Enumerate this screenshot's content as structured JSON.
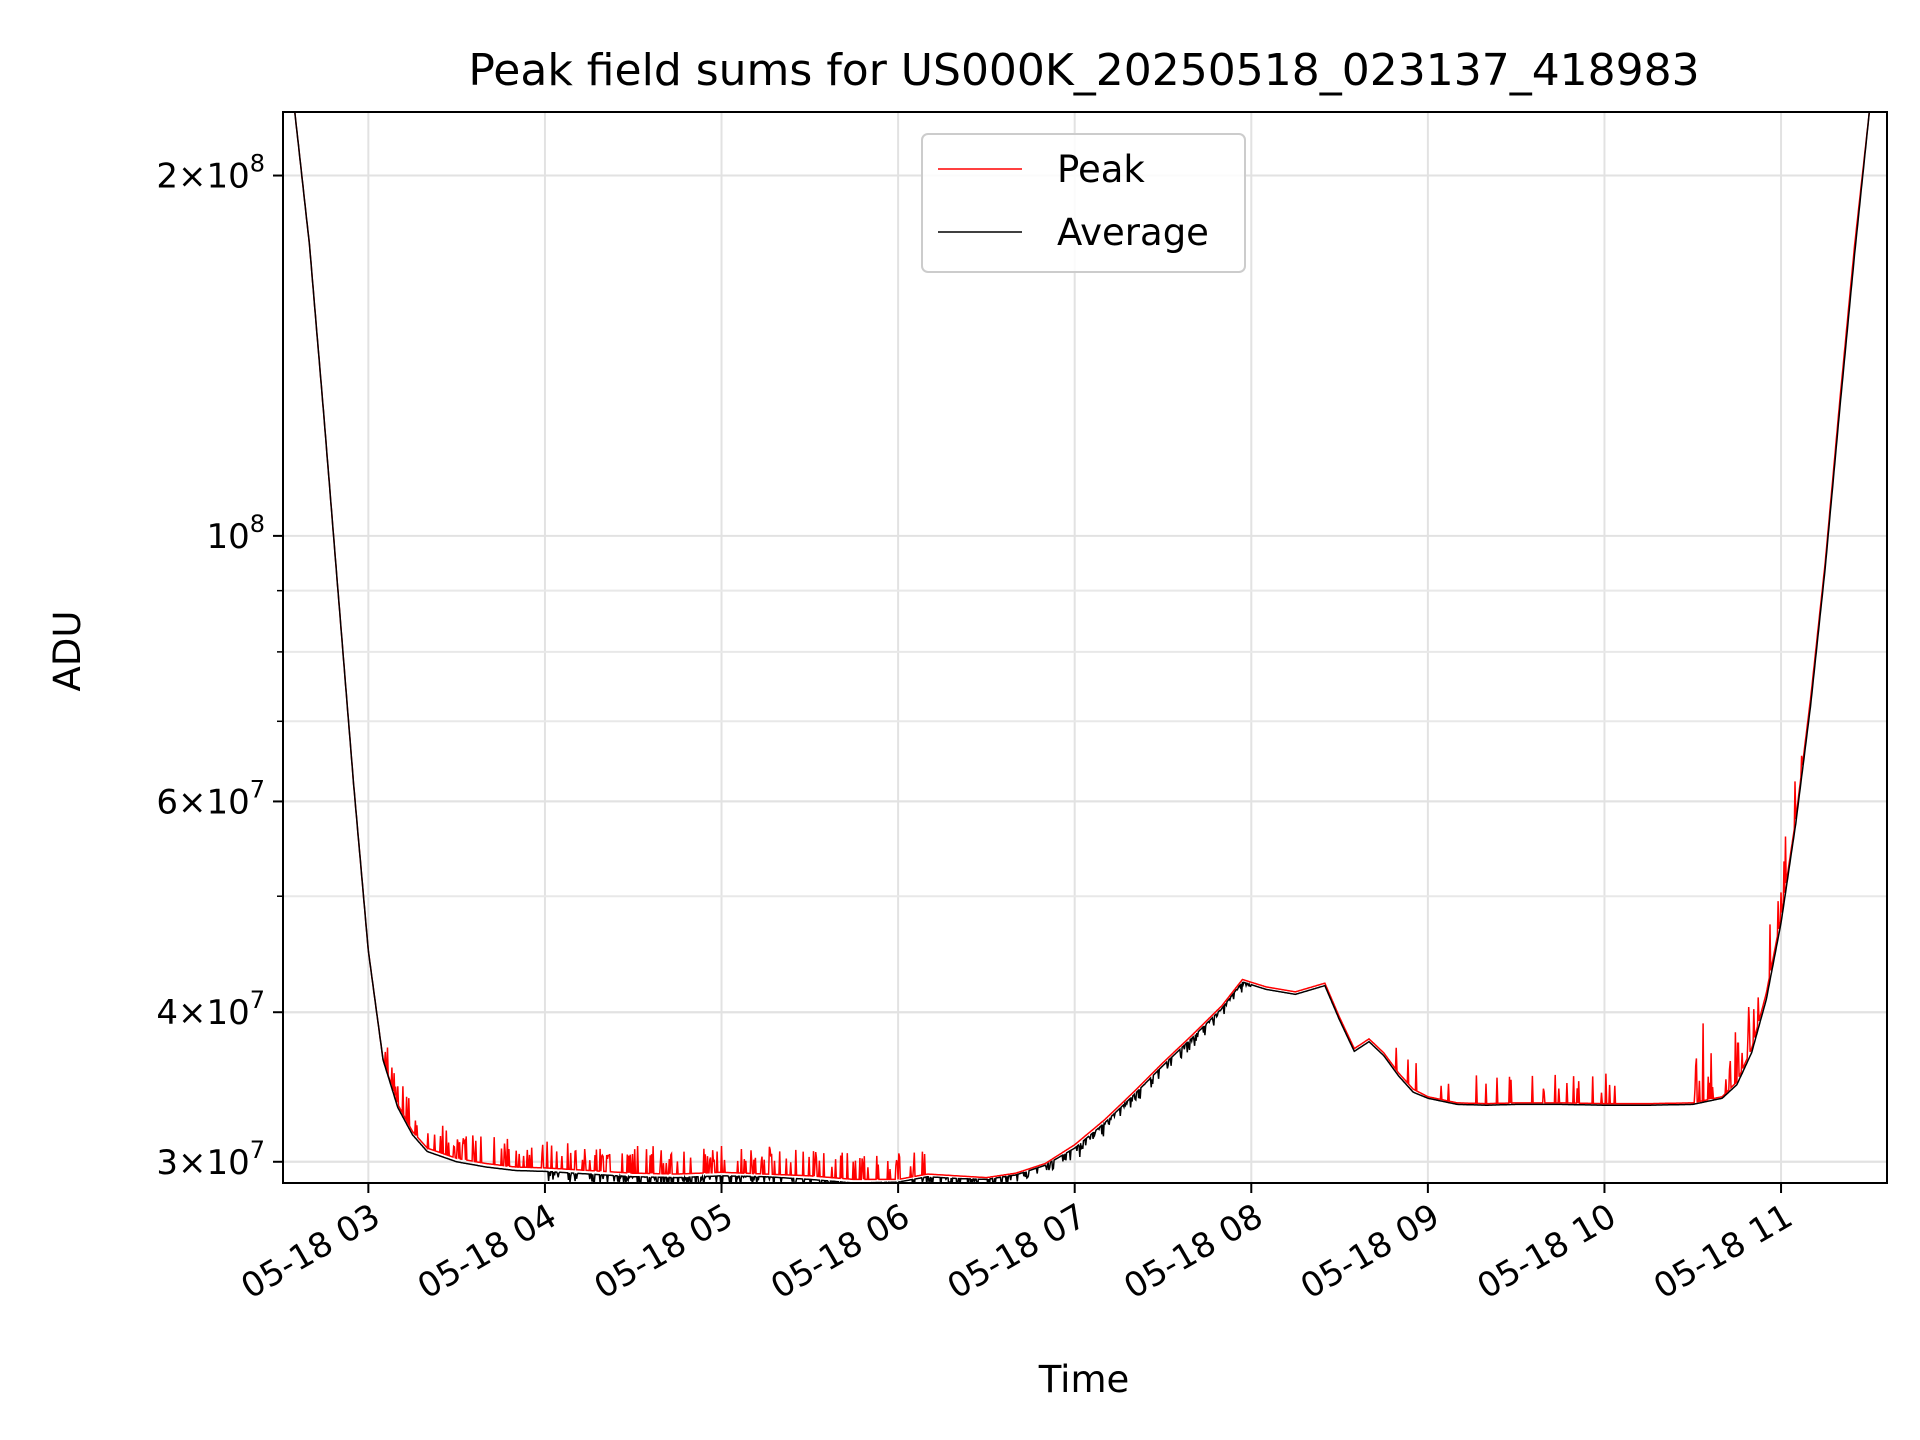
{
  "chart_data": {
    "type": "line",
    "title": "Peak field sums for US000K_20250518_023137_418983",
    "xlabel": "Time",
    "ylabel": "ADU",
    "yscale": "log",
    "grid": true,
    "legend_position": "upper center",
    "xlim": [
      "05-18 02:31",
      "05-18 11:36"
    ],
    "ylim": [
      28800000,
      226000000
    ],
    "x_ticks": [
      "05-18 03",
      "05-18 04",
      "05-18 05",
      "05-18 06",
      "05-18 07",
      "05-18 08",
      "05-18 09",
      "05-18 10",
      "05-18 11"
    ],
    "y_ticks": [
      {
        "value": 30000000,
        "mantissa": "3",
        "exp": "7"
      },
      {
        "value": 40000000,
        "mantissa": "4",
        "exp": "7"
      },
      {
        "value": 60000000,
        "mantissa": "6",
        "exp": "7"
      },
      {
        "value": 100000000,
        "mantissa": "",
        "exp": "8"
      },
      {
        "value": 200000000,
        "mantissa": "2",
        "exp": "8"
      }
    ],
    "colors": {
      "peak": "#ff0000",
      "average": "#000000"
    },
    "series": [
      {
        "name": "Peak",
        "color": "#ff0000",
        "x": [
          "02:31",
          "02:35",
          "02:40",
          "02:45",
          "02:50",
          "02:55",
          "03:00",
          "03:05",
          "03:10",
          "03:15",
          "03:20",
          "03:30",
          "03:40",
          "03:50",
          "04:00",
          "04:15",
          "04:30",
          "04:45",
          "05:00",
          "05:15",
          "05:30",
          "05:45",
          "06:00",
          "06:10",
          "06:20",
          "06:30",
          "06:40",
          "06:50",
          "07:00",
          "07:10",
          "07:20",
          "07:30",
          "07:40",
          "07:50",
          "07:57",
          "08:05",
          "08:15",
          "08:25",
          "08:30",
          "08:35",
          "08:40",
          "08:45",
          "08:50",
          "08:55",
          "09:00",
          "09:10",
          "09:20",
          "09:30",
          "09:45",
          "10:00",
          "10:15",
          "10:30",
          "10:40",
          "10:45",
          "10:50",
          "10:55",
          "11:00",
          "11:05",
          "11:10",
          "11:15",
          "11:20",
          "11:25",
          "11:30",
          "11:36"
        ],
        "y": [
          226000000,
          226000000,
          175000000,
          125000000,
          88000000,
          62000000,
          45000000,
          36500000,
          33500000,
          31800000,
          30800000,
          30200000,
          29900000,
          29700000,
          29650000,
          29500000,
          29350000,
          29300000,
          29400000,
          29300000,
          29200000,
          29000000,
          29000000,
          29300000,
          29200000,
          29100000,
          29350000,
          29900000,
          31000000,
          32500000,
          34300000,
          36300000,
          38300000,
          40500000,
          42600000,
          42000000,
          41600000,
          42300000,
          39600000,
          37300000,
          38000000,
          37000000,
          35600000,
          34500000,
          34000000,
          33600000,
          33550000,
          33600000,
          33600000,
          33550000,
          33550000,
          33600000,
          34000000,
          35000000,
          37300000,
          41500000,
          48000000,
          58000000,
          73000000,
          95000000,
          130000000,
          175000000,
          226000000,
          226000000
        ],
        "spikes": {
          "04:00-06:00 band": "up to ~30,600,000",
          "05-18 03:00 transition": "~35,900,000",
          "08:40-10:45 band": "up to ~35,000,000",
          "10:30-11:10 rise": "up to ~40,000,000"
        }
      },
      {
        "name": "Average",
        "color": "#000000",
        "x": [
          "02:31",
          "02:35",
          "02:40",
          "02:45",
          "02:50",
          "02:55",
          "03:00",
          "03:05",
          "03:10",
          "03:15",
          "03:20",
          "03:30",
          "03:40",
          "03:50",
          "04:00",
          "04:15",
          "04:30",
          "04:45",
          "05:00",
          "05:15",
          "05:30",
          "05:45",
          "06:00",
          "06:10",
          "06:20",
          "06:30",
          "06:40",
          "06:50",
          "07:00",
          "07:10",
          "07:20",
          "07:30",
          "07:40",
          "07:50",
          "07:57",
          "08:05",
          "08:15",
          "08:25",
          "08:30",
          "08:35",
          "08:40",
          "08:45",
          "08:50",
          "08:55",
          "09:00",
          "09:10",
          "09:20",
          "09:30",
          "09:45",
          "10:00",
          "10:15",
          "10:30",
          "10:40",
          "10:45",
          "10:50",
          "10:55",
          "11:00",
          "11:05",
          "11:10",
          "11:15",
          "11:20",
          "11:25",
          "11:30",
          "11:36"
        ],
        "y": [
          226000000,
          226000000,
          175000000,
          125000000,
          88000000,
          62000000,
          45000000,
          36500000,
          33300000,
          31600000,
          30600000,
          30000000,
          29700000,
          29500000,
          29450000,
          29300000,
          29150000,
          29100000,
          29200000,
          29150000,
          29000000,
          28800000,
          28850000,
          29150000,
          29050000,
          29000000,
          29250000,
          29800000,
          30800000,
          32300000,
          34100000,
          36100000,
          38100000,
          40300000,
          42400000,
          41800000,
          41400000,
          42100000,
          39400000,
          37100000,
          37800000,
          36800000,
          35400000,
          34300000,
          33900000,
          33500000,
          33450000,
          33500000,
          33500000,
          33450000,
          33450000,
          33500000,
          33900000,
          34800000,
          37000000,
          41000000,
          47500000,
          57500000,
          72000000,
          94000000,
          128000000,
          172000000,
          226000000,
          226000000
        ]
      }
    ]
  }
}
